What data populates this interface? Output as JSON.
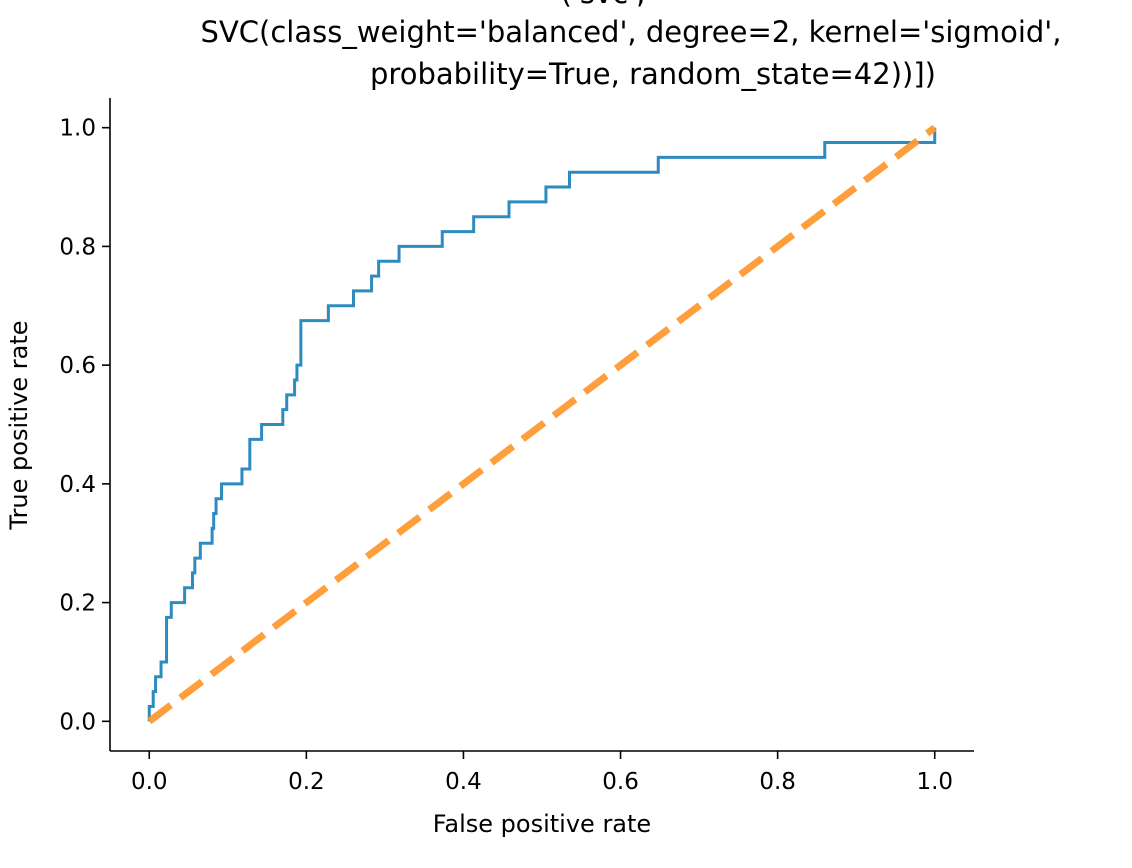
{
  "chart_data": {
    "type": "line",
    "title_lines": [
      "('svc',",
      "SVC(class_weight='balanced', degree=2, kernel='sigmoid',",
      "probability=True, random_state=42))])"
    ],
    "xlabel": "False positive rate",
    "ylabel": "True positive rate",
    "xlim": [
      -0.05,
      1.05
    ],
    "ylim": [
      -0.05,
      1.05
    ],
    "xticks": [
      0.0,
      0.2,
      0.4,
      0.6,
      0.8,
      1.0
    ],
    "yticks": [
      0.0,
      0.2,
      0.4,
      0.6,
      0.8,
      1.0
    ],
    "xtick_labels": [
      "0.0",
      "0.2",
      "0.4",
      "0.6",
      "0.8",
      "1.0"
    ],
    "ytick_labels": [
      "0.0",
      "0.2",
      "0.4",
      "0.6",
      "0.8",
      "1.0"
    ],
    "grid": false,
    "series": [
      {
        "style": "solid",
        "color": "#2e8bc0",
        "x": [
          0.0,
          0.0,
          0.005,
          0.005,
          0.008,
          0.008,
          0.01,
          0.01,
          0.015,
          0.015,
          0.022,
          0.022,
          0.028,
          0.028,
          0.045,
          0.045,
          0.055,
          0.055,
          0.058,
          0.058,
          0.062,
          0.062,
          0.065,
          0.065,
          0.08,
          0.08,
          0.082,
          0.082,
          0.085,
          0.085,
          0.092,
          0.092,
          0.118,
          0.118,
          0.128,
          0.128,
          0.143,
          0.143,
          0.17,
          0.17,
          0.175,
          0.175,
          0.185,
          0.185,
          0.188,
          0.188,
          0.193,
          0.193,
          0.228,
          0.228,
          0.26,
          0.26,
          0.283,
          0.283,
          0.292,
          0.292,
          0.318,
          0.318,
          0.373,
          0.373,
          0.413,
          0.413,
          0.458,
          0.458,
          0.505,
          0.505,
          0.535,
          0.535,
          0.648,
          0.648,
          0.86,
          0.86,
          0.96,
          0.96,
          1.0,
          1.0
        ],
        "y": [
          0.0,
          0.025,
          0.025,
          0.05,
          0.05,
          0.075,
          0.075,
          0.075,
          0.075,
          0.1,
          0.1,
          0.175,
          0.175,
          0.2,
          0.2,
          0.225,
          0.225,
          0.25,
          0.25,
          0.275,
          0.275,
          0.275,
          0.275,
          0.3,
          0.3,
          0.325,
          0.325,
          0.35,
          0.35,
          0.375,
          0.375,
          0.4,
          0.4,
          0.425,
          0.425,
          0.475,
          0.475,
          0.5,
          0.5,
          0.525,
          0.525,
          0.55,
          0.55,
          0.575,
          0.575,
          0.6,
          0.6,
          0.675,
          0.675,
          0.7,
          0.7,
          0.725,
          0.725,
          0.75,
          0.75,
          0.775,
          0.775,
          0.8,
          0.8,
          0.825,
          0.825,
          0.85,
          0.85,
          0.875,
          0.875,
          0.9,
          0.9,
          0.925,
          0.925,
          0.95,
          0.95,
          0.975,
          0.975,
          0.975,
          0.975,
          1.0
        ]
      },
      {
        "style": "dashed",
        "color": "#ff9933",
        "x": [
          0.0,
          1.0
        ],
        "y": [
          0.0,
          1.0
        ]
      }
    ]
  }
}
